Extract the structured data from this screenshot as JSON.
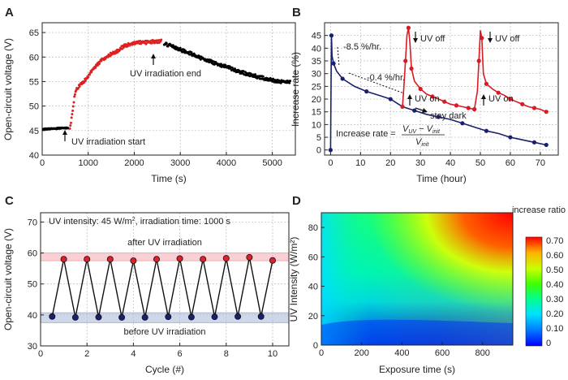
{
  "chart_data": [
    {
      "panel": "A",
      "type": "scatter",
      "xlabel": "Time (s)",
      "ylabel": "Open-circuit voltage (V)",
      "xlim": [
        0,
        5500
      ],
      "ylim": [
        40,
        67
      ],
      "xticks": [
        0,
        1000,
        2000,
        3000,
        4000,
        5000
      ],
      "yticks": [
        40,
        45,
        50,
        55,
        60,
        65
      ],
      "grid": true,
      "series": [
        {
          "color": "#000000",
          "x": [
            0,
            100,
            200,
            300,
            400,
            500,
            580
          ],
          "y": [
            45.3,
            45.3,
            45.4,
            45.4,
            45.5,
            45.5,
            45.6
          ]
        },
        {
          "color": "#e02020",
          "x": [
            600,
            650,
            700,
            750,
            800,
            900,
            1000,
            1100,
            1200,
            1300,
            1400,
            1500,
            1600,
            1700,
            1800,
            1900,
            2000,
            2100,
            2200,
            2300,
            2400,
            2500,
            2600
          ],
          "y": [
            45.5,
            48,
            52,
            53.5,
            54,
            55,
            56,
            57.5,
            58.5,
            59.5,
            60,
            60.6,
            61,
            61.8,
            62.3,
            62.6,
            62.8,
            63,
            63,
            63,
            63.1,
            63.2,
            63.2
          ]
        },
        {
          "color": "#000000",
          "x": [
            2650,
            2800,
            3000,
            3200,
            3400,
            3600,
            3800,
            4000,
            4200,
            4400,
            4600,
            4800,
            5000,
            5200,
            5400
          ],
          "y": [
            62.8,
            62.3,
            61.5,
            60.8,
            60,
            59.3,
            58.6,
            58,
            57.3,
            56.7,
            56.2,
            55.7,
            55.3,
            55,
            54.8
          ]
        }
      ],
      "annotations": [
        "UV irradiation start",
        "UV irradiation end"
      ]
    },
    {
      "panel": "B",
      "type": "line",
      "xlabel": "Time (hour)",
      "ylabel": "Increase rate (%)",
      "xlim": [
        -2,
        76
      ],
      "ylim": [
        -2,
        50
      ],
      "xticks": [
        0,
        10,
        20,
        30,
        40,
        50,
        60,
        70
      ],
      "yticks": [
        0,
        5,
        10,
        15,
        20,
        25,
        30,
        35,
        40,
        45
      ],
      "grid": true,
      "series": [
        {
          "color": "#1a1f6e",
          "x": [
            0,
            0.15,
            0.3,
            0.5,
            1,
            2,
            4,
            8,
            12,
            16,
            20,
            24,
            28,
            32,
            36,
            40,
            44,
            48,
            52,
            56,
            60,
            64,
            68,
            72
          ],
          "y": [
            0,
            22,
            45,
            37,
            34,
            31,
            28,
            25,
            23,
            21.5,
            20,
            17,
            15.5,
            14,
            13,
            12,
            10.5,
            9,
            7.5,
            6.5,
            5,
            4,
            3,
            2
          ]
        },
        {
          "color": "#d81b24",
          "x": [
            24,
            24.5,
            25,
            25.5,
            26,
            26.5,
            27,
            28,
            30,
            32,
            34,
            36,
            38,
            40,
            42,
            44,
            46,
            48
          ],
          "y": [
            17,
            25,
            35,
            45,
            48,
            42,
            32,
            27,
            24,
            22,
            21,
            20,
            19,
            18,
            17.5,
            17,
            16.5,
            16
          ]
        },
        {
          "color": "#d81b24",
          "x": [
            48,
            49,
            49.5,
            50,
            50.5,
            51,
            52,
            54,
            56,
            58,
            60,
            62,
            64,
            66,
            68,
            70,
            72
          ],
          "y": [
            16,
            23,
            35,
            47,
            44,
            30,
            26,
            24,
            22.5,
            21.5,
            20,
            19,
            18,
            17,
            16.5,
            16,
            15
          ]
        }
      ],
      "annotations": [
        "-8.5 %/hr.",
        "-0.4 %/hr.",
        "UV off",
        "UV off",
        "UV on",
        "UV on",
        "stay dark"
      ],
      "formula": {
        "lhs": "Increase rate = ",
        "num": "V",
        "num_sub1": "UV",
        "mid": " − V",
        "num_sub2": "init",
        "den": "V",
        "den_sub": "init"
      }
    },
    {
      "panel": "C",
      "type": "line",
      "xlabel": "Cycle (#)",
      "ylabel": "Open-circuit voltage (V)",
      "xlim": [
        0,
        10.7
      ],
      "ylim": [
        30,
        73
      ],
      "xticks": [
        0,
        2,
        4,
        6,
        8,
        10
      ],
      "yticks": [
        30,
        40,
        50,
        60,
        70
      ],
      "grid": true,
      "x": [
        0.5,
        1,
        1.5,
        2,
        2.5,
        3,
        3.5,
        4,
        4.5,
        5,
        5.5,
        6,
        6.5,
        7,
        7.5,
        8,
        8.5,
        9,
        9.5,
        10
      ],
      "y": [
        39.5,
        58,
        39.2,
        58,
        39.3,
        58,
        39.2,
        57.5,
        39.2,
        58,
        39.4,
        58.2,
        39.3,
        58,
        39.4,
        58.3,
        39.5,
        58.6,
        39.5,
        57.6
      ],
      "bands": [
        {
          "range": [
            57.5,
            60
          ],
          "color": "#f4aab0",
          "label": "after UV irradiation"
        },
        {
          "range": [
            37.5,
            40.7
          ],
          "color": "#a7b6d8",
          "label": "before UV irradiation"
        }
      ],
      "note": {
        "text1": "UV intensity: 45 W/m",
        "sup": "2",
        "text2": ", irradiation time: 1000 s"
      }
    },
    {
      "panel": "D",
      "type": "heatmap",
      "xlabel": "Exposure time (s)",
      "ylabel": "UV Intensity (W/m²)",
      "xlim": [
        0,
        950
      ],
      "ylim": [
        0,
        90
      ],
      "xticks": [
        0,
        200,
        400,
        600,
        800
      ],
      "yticks": [
        0,
        20,
        40,
        60,
        80
      ],
      "colorbar": {
        "title": "increase ratio",
        "ticks": [
          "0.70",
          "0.60",
          "0.50",
          "0.40",
          "0.30",
          "0.20",
          "0.10",
          "0"
        ]
      }
    }
  ]
}
